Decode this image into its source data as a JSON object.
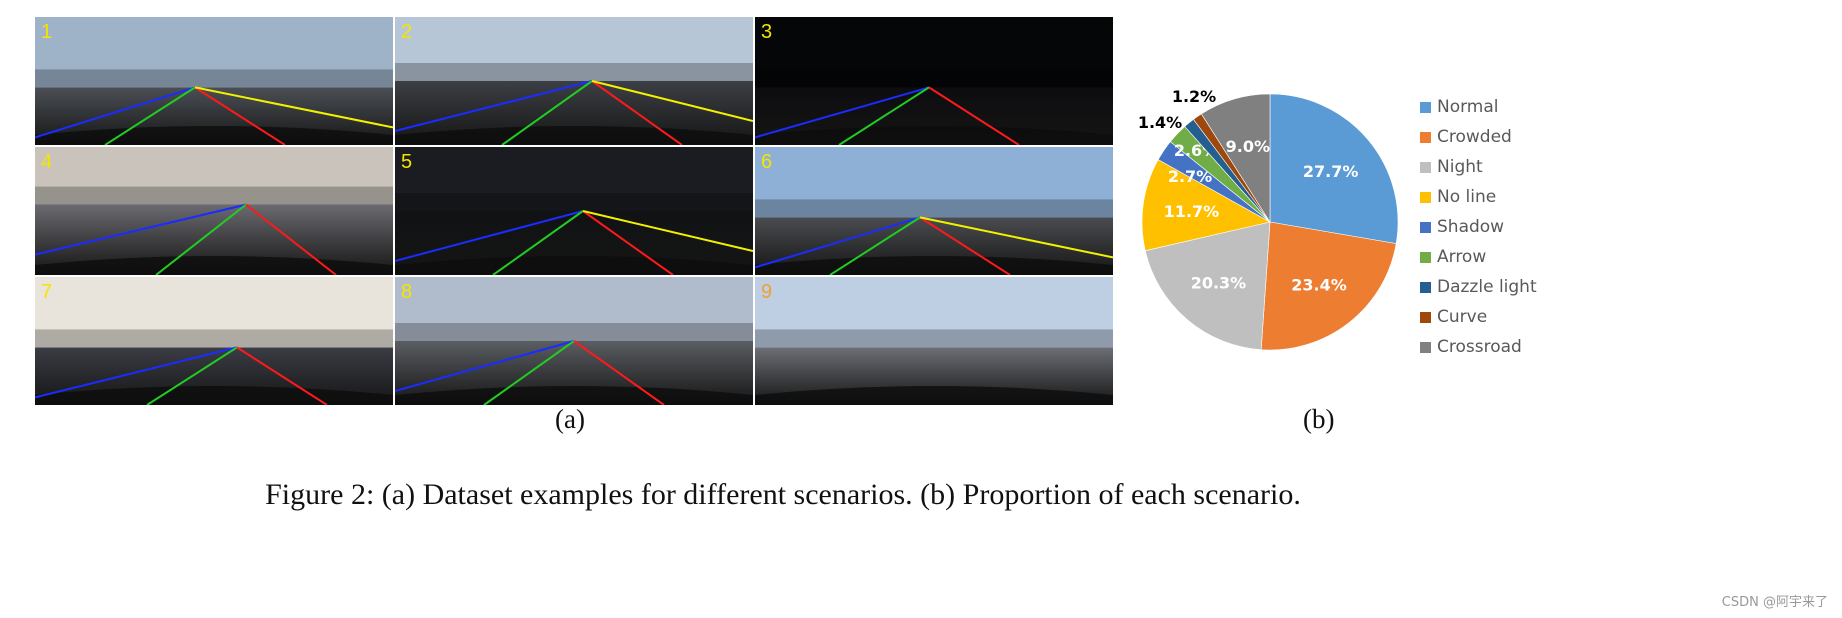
{
  "panel_a": {
    "label": "(a)",
    "cells": [
      {
        "num": "1"
      },
      {
        "num": "2"
      },
      {
        "num": "3"
      },
      {
        "num": "4"
      },
      {
        "num": "5"
      },
      {
        "num": "6"
      },
      {
        "num": "7"
      },
      {
        "num": "8"
      },
      {
        "num": "9"
      }
    ],
    "lane_colors": {
      "left": "#1a2cff",
      "center": "#22cc22",
      "right": "#ff1a1a",
      "far": "#f2f200"
    }
  },
  "panel_b": {
    "label": "(b)"
  },
  "chart_data": {
    "type": "pie",
    "start": "top, clockwise",
    "legend_position": "right",
    "series": [
      {
        "name": "Normal",
        "value": 27.7,
        "label": "27.7%",
        "color": "#5b9bd5"
      },
      {
        "name": "Crowded",
        "value": 23.4,
        "label": "23.4%",
        "color": "#ed7d31"
      },
      {
        "name": "Night",
        "value": 20.3,
        "label": "20.3%",
        "color": "#bfbfbf"
      },
      {
        "name": "No line",
        "value": 11.7,
        "label": "11.7%",
        "color": "#ffc000"
      },
      {
        "name": "Shadow",
        "value": 2.7,
        "label": "2.7%",
        "color": "#4472c4"
      },
      {
        "name": "Arrow",
        "value": 2.6,
        "label": "2.6%",
        "color": "#70ad47"
      },
      {
        "name": "Dazzle light",
        "value": 1.4,
        "label": "1.4%",
        "color": "#255e91"
      },
      {
        "name": "Curve",
        "value": 1.2,
        "label": "1.2%",
        "color": "#9e480e"
      },
      {
        "name": "Crossroad",
        "value": 9.0,
        "label": "9.0%",
        "color": "#808080"
      }
    ]
  },
  "caption": "Figure 2: (a) Dataset examples for different scenarios. (b) Proportion of each scenario.",
  "watermark": "CSDN @阿宇来了"
}
